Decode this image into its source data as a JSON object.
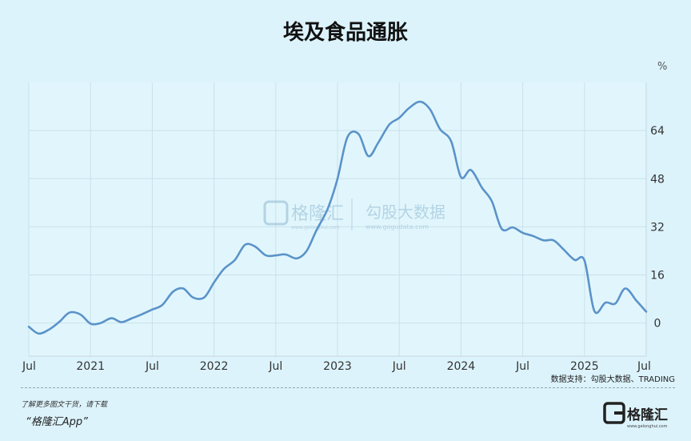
{
  "title": "埃及食品通胀",
  "source": "数据支持：勾股大数据、TRADING",
  "promo": {
    "line1": "了解更多图文干货，请下载",
    "line2": "“格隆汇App”"
  },
  "logo": {
    "text": "格隆汇",
    "subtext": "www.gelonghui.com"
  },
  "watermark": {
    "left": "格隆汇",
    "left_sub": "www.gelonghui.com",
    "right": "勾股大数据",
    "right_sub": "www.gogudata.com"
  },
  "colors": {
    "line": "#5b93c9",
    "background": "#dcf3fb",
    "plot_bg": "#e1f6fc"
  },
  "chart_data": {
    "type": "line",
    "title": "埃及食品通胀",
    "unit_label": "%",
    "ylim": [
      -11,
      80
    ],
    "yticks": [
      0,
      16,
      32,
      48,
      64
    ],
    "xlim": [
      2020.5,
      2025.5
    ],
    "xtick_positions": [
      2020.5,
      2021.0,
      2021.5,
      2022.0,
      2022.5,
      2023.0,
      2023.5,
      2024.0,
      2024.5,
      2025.0,
      2025.5
    ],
    "xtick_labels": [
      "Jul",
      "2021",
      "Jul",
      "2022",
      "Jul",
      "2023",
      "Jul",
      "2024",
      "Jul",
      "2025",
      "Jul"
    ],
    "grid": true,
    "series": [
      {
        "values": [
          [
            2020.5,
            -1.2
          ],
          [
            2020.58,
            -3.5
          ],
          [
            2020.67,
            -2.0
          ],
          [
            2020.75,
            0.5
          ],
          [
            2020.83,
            3.5
          ],
          [
            2020.92,
            2.8
          ],
          [
            2021.0,
            -0.2
          ],
          [
            2021.08,
            0.0
          ],
          [
            2021.17,
            1.6
          ],
          [
            2021.25,
            0.3
          ],
          [
            2021.33,
            1.5
          ],
          [
            2021.42,
            3.0
          ],
          [
            2021.5,
            4.5
          ],
          [
            2021.58,
            6.0
          ],
          [
            2021.67,
            10.5
          ],
          [
            2021.75,
            11.5
          ],
          [
            2021.83,
            8.5
          ],
          [
            2021.92,
            8.5
          ],
          [
            2022.0,
            13.5
          ],
          [
            2022.08,
            18.0
          ],
          [
            2022.17,
            21.0
          ],
          [
            2022.25,
            26.0
          ],
          [
            2022.33,
            25.5
          ],
          [
            2022.42,
            22.5
          ],
          [
            2022.5,
            22.5
          ],
          [
            2022.58,
            22.8
          ],
          [
            2022.67,
            21.5
          ],
          [
            2022.75,
            24.0
          ],
          [
            2022.83,
            30.9
          ],
          [
            2022.92,
            37.9
          ],
          [
            2023.0,
            48.0
          ],
          [
            2023.08,
            61.8
          ],
          [
            2023.17,
            62.9
          ],
          [
            2023.25,
            55.5
          ],
          [
            2023.33,
            60.0
          ],
          [
            2023.42,
            66.0
          ],
          [
            2023.5,
            68.2
          ],
          [
            2023.58,
            71.5
          ],
          [
            2023.67,
            73.6
          ],
          [
            2023.75,
            71.0
          ],
          [
            2023.83,
            64.5
          ],
          [
            2023.92,
            60.5
          ],
          [
            2024.0,
            48.5
          ],
          [
            2024.08,
            50.9
          ],
          [
            2024.17,
            45.0
          ],
          [
            2024.25,
            40.5
          ],
          [
            2024.33,
            31.3
          ],
          [
            2024.42,
            31.8
          ],
          [
            2024.5,
            30.0
          ],
          [
            2024.58,
            29.0
          ],
          [
            2024.67,
            27.5
          ],
          [
            2024.75,
            27.5
          ],
          [
            2024.83,
            24.5
          ],
          [
            2024.92,
            21.0
          ],
          [
            2025.0,
            20.8
          ],
          [
            2025.08,
            4.0
          ],
          [
            2025.17,
            6.8
          ],
          [
            2025.25,
            6.5
          ],
          [
            2025.33,
            11.5
          ],
          [
            2025.42,
            7.5
          ],
          [
            2025.5,
            3.8
          ]
        ]
      }
    ]
  }
}
